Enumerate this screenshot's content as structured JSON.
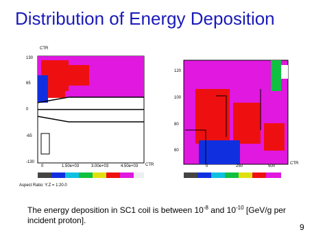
{
  "header": {
    "title": "Distribution of Energy Deposition"
  },
  "left_plot": {
    "axis_unit": "CTR",
    "y_labels": [
      "130",
      "65",
      "0",
      "-65",
      "-130"
    ],
    "x_labels": [
      "0",
      "1.50e+03",
      "3.00e+03",
      "4.50e+03"
    ],
    "x_unit": "CTR",
    "aspect": "Aspect Ratio: Y:Z = 1:20.0"
  },
  "right_plot": {
    "y_labels": [
      "120",
      "100",
      "80",
      "60"
    ],
    "x_labels": [
      "0",
      "250",
      "500"
    ],
    "x_unit": "CTR"
  },
  "caption": {
    "part1": "The energy deposition in SC1 coil is between 10",
    "exp1": "-8",
    "part2": "  and 10",
    "exp2": "-10",
    "part3": " [GeV/g per incident proton]."
  },
  "footer": {
    "page": "9"
  }
}
